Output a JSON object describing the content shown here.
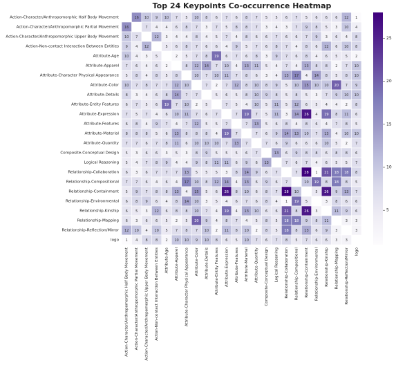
{
  "chart_data": {
    "type": "heatmap",
    "title": "Top 24 Keypoints Co-occurrence Heatmap",
    "categories": [
      "Action-Character/Anthropomorphic Half Body Movement",
      "Action-Character/Anthropomorphic Partial Movement",
      "Action-Character/Anthropomorphic Upper Body Movement",
      "Action-Non-contact Interaction Between Entities",
      "Attribute-Age",
      "Attribute-Apparel",
      "Attribute-Character Physical Appearance",
      "Attribute-Color",
      "Attribute-Details",
      "Attribute-Entity Features",
      "Attribute-Expression",
      "Attribute-Features",
      "Attribute-Material",
      "Attribute-Quantity",
      "Composite-Conceptual Design",
      "Logical Reasoning",
      "Relationship-Collaboration",
      "Relationship-Compositional",
      "Relationship-Containment",
      "Relationship-Environmental",
      "Relationship-Kinship",
      "Relationship-Mapping",
      "Relationship-Reflection/Mirror",
      "logo"
    ],
    "values": [
      [
        null,
        16,
        10,
        9,
        10,
        7,
        5,
        10,
        8,
        6,
        7,
        6,
        8,
        7,
        5,
        5,
        6,
        7,
        5,
        6,
        6,
        6,
        12,
        1
      ],
      [
        16,
        null,
        7,
        4,
        4,
        6,
        8,
        7,
        3,
        7,
        5,
        8,
        8,
        7,
        3,
        4,
        3,
        7,
        9,
        8,
        5,
        3,
        10,
        4
      ],
      [
        10,
        7,
        null,
        12,
        3,
        4,
        4,
        8,
        4,
        5,
        7,
        4,
        8,
        6,
        6,
        7,
        6,
        6,
        7,
        9,
        3,
        6,
        4,
        8
      ],
      [
        9,
        4,
        12,
        null,
        5,
        6,
        8,
        7,
        6,
        6,
        4,
        9,
        5,
        7,
        6,
        8,
        7,
        4,
        8,
        6,
        12,
        6,
        10,
        8
      ],
      [
        10,
        4,
        3,
        5,
        null,
        2,
        5,
        7,
        8,
        19,
        6,
        7,
        6,
        8,
        3,
        9,
        7,
        6,
        8,
        4,
        6,
        5,
        5,
        2
      ],
      [
        7,
        6,
        4,
        6,
        2,
        null,
        8,
        12,
        14,
        7,
        10,
        4,
        13,
        11,
        5,
        4,
        7,
        4,
        13,
        8,
        8,
        2,
        7,
        10
      ],
      [
        5,
        8,
        4,
        8,
        5,
        8,
        null,
        10,
        7,
        10,
        11,
        7,
        8,
        6,
        3,
        4,
        13,
        17,
        4,
        14,
        8,
        5,
        8,
        10
      ],
      [
        10,
        7,
        8,
        7,
        7,
        12,
        10,
        null,
        7,
        2,
        7,
        12,
        8,
        10,
        8,
        9,
        5,
        10,
        15,
        10,
        10,
        20,
        7,
        9
      ],
      [
        8,
        3,
        4,
        6,
        8,
        14,
        7,
        7,
        null,
        5,
        6,
        5,
        8,
        10,
        9,
        8,
        5,
        8,
        5,
        3,
        7,
        9,
        10,
        10
      ],
      [
        6,
        7,
        5,
        6,
        19,
        7,
        10,
        2,
        5,
        null,
        7,
        5,
        4,
        10,
        5,
        11,
        5,
        12,
        6,
        5,
        4,
        4,
        2,
        8
      ],
      [
        7,
        5,
        7,
        4,
        6,
        10,
        11,
        7,
        6,
        7,
        null,
        7,
        19,
        7,
        5,
        11,
        3,
        14,
        26,
        4,
        19,
        8,
        11,
        6
      ],
      [
        6,
        8,
        4,
        9,
        7,
        4,
        7,
        12,
        5,
        5,
        7,
        null,
        7,
        13,
        5,
        6,
        8,
        4,
        8,
        6,
        4,
        7,
        8,
        5
      ],
      [
        8,
        8,
        8,
        5,
        6,
        13,
        8,
        8,
        8,
        4,
        19,
        7,
        null,
        7,
        6,
        9,
        14,
        13,
        10,
        7,
        13,
        4,
        10,
        10
      ],
      [
        7,
        7,
        6,
        7,
        8,
        11,
        6,
        10,
        10,
        10,
        7,
        13,
        7,
        null,
        7,
        6,
        9,
        6,
        6,
        6,
        10,
        5,
        2,
        7
      ],
      [
        5,
        3,
        6,
        6,
        3,
        5,
        3,
        8,
        9,
        5,
        5,
        5,
        6,
        7,
        null,
        13,
        6,
        9,
        8,
        8,
        6,
        8,
        8,
        6
      ],
      [
        5,
        4,
        7,
        8,
        9,
        4,
        4,
        9,
        8,
        11,
        11,
        6,
        9,
        6,
        13,
        null,
        7,
        6,
        7,
        4,
        6,
        5,
        5,
        7
      ],
      [
        6,
        3,
        6,
        7,
        7,
        7,
        13,
        5,
        5,
        5,
        3,
        8,
        14,
        9,
        6,
        7,
        null,
        7,
        28,
        1,
        21,
        18,
        18,
        8
      ],
      [
        7,
        7,
        6,
        4,
        6,
        4,
        17,
        10,
        8,
        12,
        14,
        4,
        13,
        6,
        9,
        6,
        7,
        null,
        10,
        19,
        8,
        18,
        8,
        5
      ],
      [
        5,
        9,
        7,
        8,
        8,
        13,
        4,
        15,
        5,
        6,
        26,
        8,
        10,
        6,
        8,
        7,
        28,
        10,
        null,
        5,
        26,
        9,
        13,
        7
      ],
      [
        6,
        8,
        9,
        6,
        4,
        8,
        14,
        10,
        3,
        5,
        4,
        6,
        7,
        6,
        8,
        4,
        1,
        19,
        5,
        null,
        3,
        8,
        6,
        6
      ],
      [
        6,
        5,
        3,
        12,
        6,
        8,
        8,
        10,
        7,
        4,
        19,
        4,
        13,
        10,
        6,
        6,
        21,
        8,
        26,
        3,
        null,
        11,
        9,
        6
      ],
      [
        6,
        3,
        6,
        6,
        5,
        2,
        5,
        20,
        9,
        4,
        8,
        7,
        4,
        5,
        8,
        5,
        18,
        18,
        9,
        8,
        11,
        null,
        3,
        3
      ],
      [
        12,
        10,
        4,
        10,
        5,
        7,
        8,
        7,
        10,
        2,
        11,
        8,
        10,
        2,
        8,
        5,
        18,
        8,
        13,
        6,
        9,
        3,
        null,
        3
      ],
      [
        1,
        4,
        8,
        8,
        2,
        10,
        10,
        9,
        10,
        8,
        6,
        5,
        10,
        7,
        6,
        7,
        8,
        5,
        7,
        6,
        6,
        3,
        3,
        null
      ]
    ],
    "colormap": [
      "#fcfbfd",
      "#efedf5",
      "#dadaeb",
      "#bcbddc",
      "#9e9ac8",
      "#807dba",
      "#6a51a3",
      "#54278f",
      "#3f007d"
    ],
    "clim": [
      1,
      28
    ],
    "cticks": [
      5,
      10,
      15,
      20,
      25
    ]
  }
}
